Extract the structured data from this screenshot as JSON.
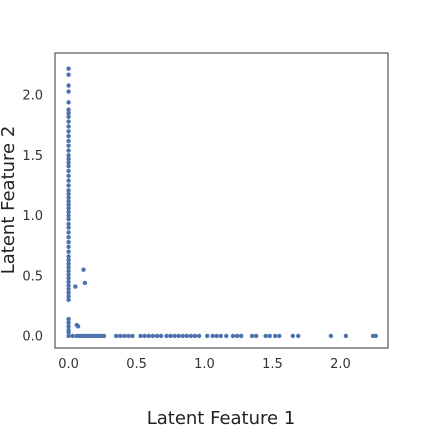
{
  "chart_data": {
    "type": "scatter",
    "title": "",
    "xlabel": "Latent Feature 1",
    "ylabel": "Latent Feature 2",
    "xlim": [
      -0.1,
      2.35
    ],
    "ylim": [
      -0.1,
      2.35
    ],
    "xticks": [
      "0.0",
      "0.5",
      "1.0",
      "1.5",
      "2.0"
    ],
    "yticks": [
      "0.0",
      "0.5",
      "1.0",
      "1.5",
      "2.0"
    ],
    "grid": false,
    "colors": {
      "marker": "#4c72b0",
      "frame": "#333333"
    },
    "series": [
      {
        "points": [
          [
            0.0,
            2.22
          ],
          [
            0.0,
            2.17
          ],
          [
            0.0,
            2.08
          ],
          [
            0.0,
            2.03
          ],
          [
            0.0,
            1.94
          ],
          [
            0.0,
            1.88
          ],
          [
            0.0,
            1.85
          ],
          [
            0.0,
            1.82
          ],
          [
            0.0,
            1.78
          ],
          [
            0.0,
            1.74
          ],
          [
            0.0,
            1.7
          ],
          [
            0.0,
            1.66
          ],
          [
            0.0,
            1.62
          ],
          [
            0.0,
            1.58
          ],
          [
            0.0,
            1.54
          ],
          [
            0.0,
            1.5
          ],
          [
            0.0,
            1.47
          ],
          [
            0.0,
            1.44
          ],
          [
            0.0,
            1.41
          ],
          [
            0.0,
            1.37
          ],
          [
            0.0,
            1.33
          ],
          [
            0.0,
            1.29
          ],
          [
            0.0,
            1.25
          ],
          [
            0.0,
            1.21
          ],
          [
            0.0,
            1.18
          ],
          [
            0.0,
            1.15
          ],
          [
            0.0,
            1.12
          ],
          [
            0.0,
            1.09
          ],
          [
            0.0,
            1.06
          ],
          [
            0.0,
            1.03
          ],
          [
            0.0,
            1.0
          ],
          [
            0.0,
            0.97
          ],
          [
            0.0,
            0.93
          ],
          [
            0.0,
            0.9
          ],
          [
            0.0,
            0.86
          ],
          [
            0.0,
            0.82
          ],
          [
            0.0,
            0.78
          ],
          [
            0.0,
            0.74
          ],
          [
            0.0,
            0.7
          ],
          [
            0.0,
            0.66
          ],
          [
            0.0,
            0.63
          ],
          [
            0.0,
            0.6
          ],
          [
            0.0,
            0.57
          ],
          [
            0.0,
            0.54
          ],
          [
            0.0,
            0.51
          ],
          [
            0.0,
            0.48
          ],
          [
            0.0,
            0.45
          ],
          [
            0.0,
            0.42
          ],
          [
            0.0,
            0.39
          ],
          [
            0.0,
            0.36
          ],
          [
            0.0,
            0.33
          ],
          [
            0.0,
            0.3
          ],
          [
            0.0,
            0.14
          ],
          [
            0.0,
            0.11
          ],
          [
            0.0,
            0.08
          ],
          [
            0.0,
            0.05
          ],
          [
            0.0,
            0.03
          ],
          [
            0.06,
            0.09
          ],
          [
            0.07,
            0.08
          ],
          [
            0.05,
            0.41
          ],
          [
            0.12,
            0.44
          ],
          [
            0.11,
            0.55
          ],
          [
            0.0,
            0.0
          ],
          [
            0.03,
            0.0
          ],
          [
            0.06,
            0.0
          ],
          [
            0.08,
            0.0
          ],
          [
            0.1,
            0.0
          ],
          [
            0.12,
            0.0
          ],
          [
            0.14,
            0.0
          ],
          [
            0.16,
            0.0
          ],
          [
            0.18,
            0.0
          ],
          [
            0.2,
            0.0
          ],
          [
            0.22,
            0.0
          ],
          [
            0.24,
            0.0
          ],
          [
            0.26,
            0.0
          ],
          [
            0.35,
            0.0
          ],
          [
            0.38,
            0.0
          ],
          [
            0.41,
            0.0
          ],
          [
            0.44,
            0.0
          ],
          [
            0.47,
            0.0
          ],
          [
            0.53,
            0.0
          ],
          [
            0.56,
            0.0
          ],
          [
            0.59,
            0.0
          ],
          [
            0.62,
            0.0
          ],
          [
            0.65,
            0.0
          ],
          [
            0.68,
            0.0
          ],
          [
            0.72,
            0.0
          ],
          [
            0.75,
            0.0
          ],
          [
            0.78,
            0.0
          ],
          [
            0.81,
            0.0
          ],
          [
            0.84,
            0.0
          ],
          [
            0.87,
            0.0
          ],
          [
            0.9,
            0.0
          ],
          [
            0.93,
            0.0
          ],
          [
            0.96,
            0.0
          ],
          [
            1.02,
            0.0
          ],
          [
            1.06,
            0.0
          ],
          [
            1.09,
            0.0
          ],
          [
            1.12,
            0.0
          ],
          [
            1.16,
            0.0
          ],
          [
            1.21,
            0.0
          ],
          [
            1.24,
            0.0
          ],
          [
            1.27,
            0.0
          ],
          [
            1.35,
            0.0
          ],
          [
            1.38,
            0.0
          ],
          [
            1.45,
            0.0
          ],
          [
            1.48,
            0.0
          ],
          [
            1.52,
            0.0
          ],
          [
            1.55,
            0.0
          ],
          [
            1.65,
            0.0
          ],
          [
            1.69,
            0.0
          ],
          [
            1.93,
            0.0
          ],
          [
            2.04,
            0.0
          ],
          [
            2.24,
            0.0
          ],
          [
            2.26,
            0.0
          ]
        ]
      }
    ]
  }
}
